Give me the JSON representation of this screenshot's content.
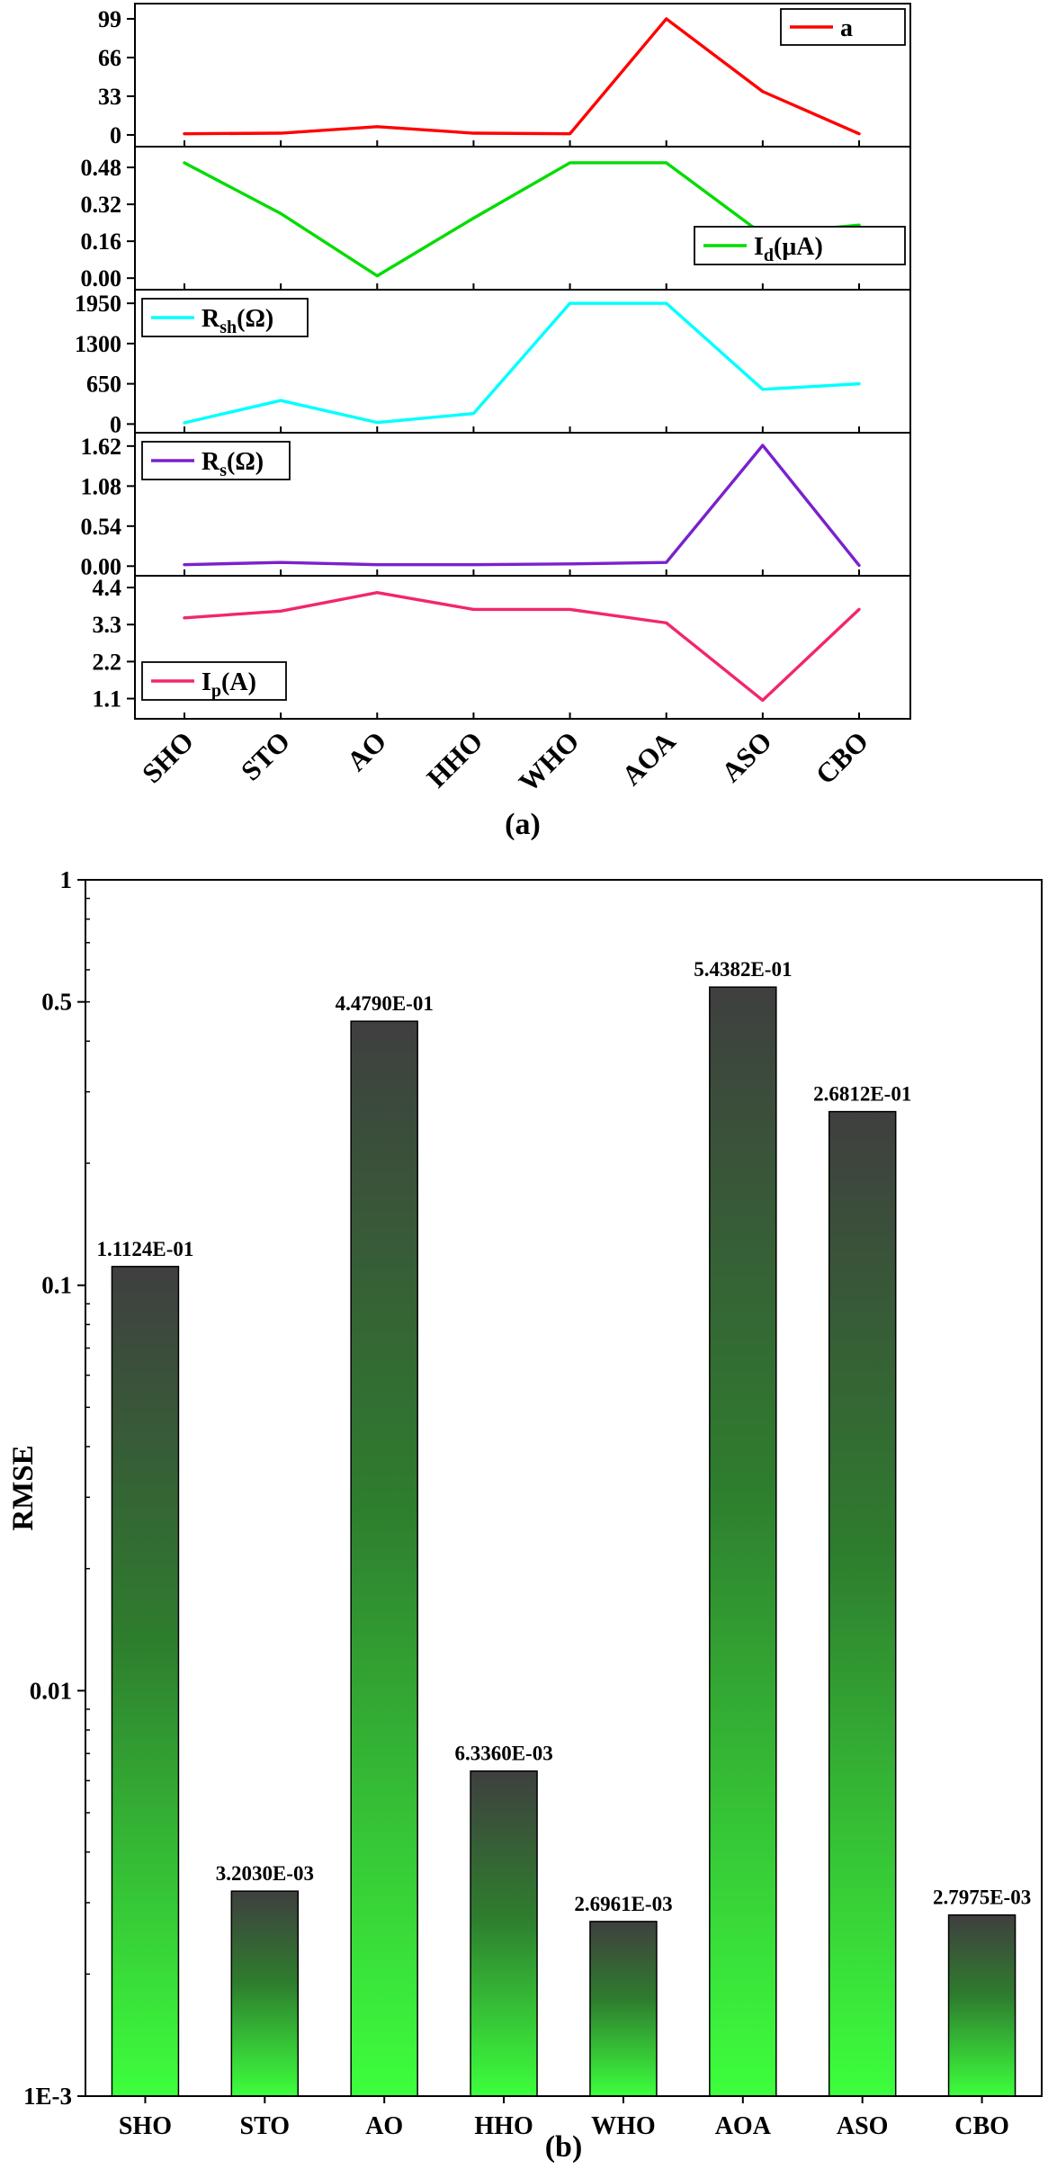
{
  "figure": {
    "caption_a": "(a)",
    "caption_b": "(b)"
  },
  "chart_data": [
    {
      "id": "parameters-panel",
      "type": "line",
      "caption": "(a)",
      "categories": [
        "SHO",
        "STO",
        "AO",
        "HHO",
        "WHO",
        "AOA",
        "ASO",
        "CBO"
      ],
      "subplots": [
        {
          "name": "ideality-factor",
          "legend": {
            "base": "a",
            "sub": "",
            "suffix": ""
          },
          "legend_position": "top-right",
          "color": "#FF0000",
          "yticks": [
            "0",
            "33",
            "66",
            "99"
          ],
          "ylim": [
            -10,
            112
          ],
          "values": [
            1,
            1.5,
            7,
            1.5,
            1,
            99,
            37,
            1
          ]
        },
        {
          "name": "diode-current",
          "legend": {
            "base": "I",
            "sub": "d",
            "suffix": "(μA)"
          },
          "legend_position": "right-lower",
          "color": "#00DC00",
          "yticks": [
            "0.00",
            "0.16",
            "0.32",
            "0.48"
          ],
          "ylim": [
            -0.05,
            0.57
          ],
          "values": [
            0.5,
            0.28,
            0.01,
            0.26,
            0.5,
            0.5,
            0.19,
            0.23
          ]
        },
        {
          "name": "shunt-resistance",
          "legend": {
            "base": "R",
            "sub": "sh",
            "suffix": "(Ω)"
          },
          "legend_position": "top-left",
          "color": "#00FFFF",
          "yticks": [
            "0",
            "650",
            "1300",
            "1950"
          ],
          "ylim": [
            -140,
            2170
          ],
          "values": [
            20,
            380,
            25,
            170,
            1950,
            1950,
            560,
            650
          ]
        },
        {
          "name": "series-resistance",
          "legend": {
            "base": "R",
            "sub": "s",
            "suffix": "(Ω)"
          },
          "legend_position": "top-left",
          "color": "#7A21CC",
          "yticks": [
            "0.00",
            "0.54",
            "1.08",
            "1.62"
          ],
          "ylim": [
            -0.13,
            1.8
          ],
          "values": [
            0.02,
            0.05,
            0.02,
            0.02,
            0.03,
            0.05,
            1.63,
            0.01
          ]
        },
        {
          "name": "photocurrent",
          "legend": {
            "base": "I",
            "sub": "p",
            "suffix": "(A)"
          },
          "legend_position": "left-lower",
          "color": "#F2266E",
          "yticks": [
            "1.1",
            "2.2",
            "3.3",
            "4.4"
          ],
          "ylim": [
            0.5,
            4.75
          ],
          "values": [
            3.5,
            3.7,
            4.25,
            3.75,
            3.75,
            3.35,
            1.05,
            3.75
          ]
        }
      ]
    },
    {
      "id": "rmse-panel",
      "type": "bar",
      "caption": "(b)",
      "ylabel": "RMSE",
      "yscale": "log",
      "ylim": [
        0.001,
        1
      ],
      "yticks": [
        "1",
        "0.5",
        "0.1",
        "0.01",
        "1E-3"
      ],
      "ytick_values": [
        1,
        0.5,
        0.1,
        0.01,
        0.001
      ],
      "categories": [
        "SHO",
        "STO",
        "AO",
        "HHO",
        "WHO",
        "AOA",
        "ASO",
        "CBO"
      ],
      "values": [
        0.11124,
        0.003203,
        0.4479,
        0.006336,
        0.0026961,
        0.54382,
        0.26812,
        0.0027975
      ],
      "value_labels": [
        "1.1124E-01",
        "3.2030E-03",
        "4.4790E-01",
        "6.3360E-03",
        "2.6961E-03",
        "5.4382E-01",
        "2.6812E-01",
        "2.7975E-03"
      ],
      "bar_gradient": {
        "top": "#3F3F3F",
        "mid": "#2E7D2E",
        "bottom": "#3DFF3D"
      },
      "legend_position": "none"
    }
  ]
}
